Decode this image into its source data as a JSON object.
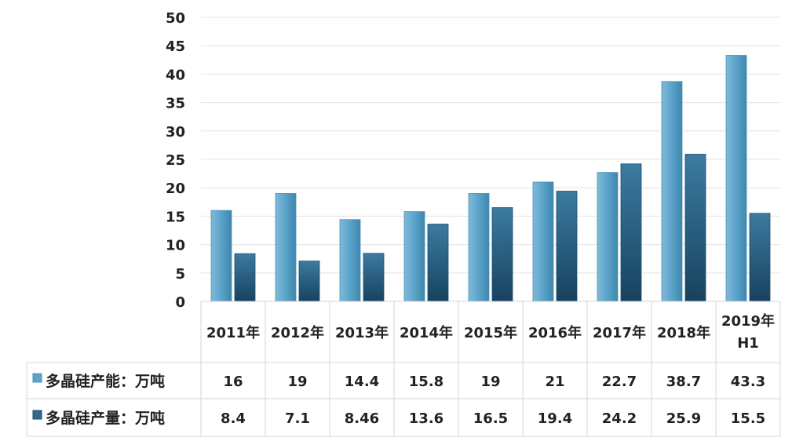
{
  "chart_data": {
    "type": "bar",
    "categories": [
      "2011年",
      "2012年",
      "2013年",
      "2014年",
      "2015年",
      "2016年",
      "2017年",
      "2018年",
      "2019年\nH1"
    ],
    "series": [
      {
        "name": "多晶硅产能：万吨",
        "values": [
          16,
          19,
          14.4,
          15.8,
          19,
          21,
          22.7,
          38.7,
          43.3
        ],
        "color": "#5BA3C9"
      },
      {
        "name": "多晶硅产量：万吨",
        "values": [
          8.4,
          7.1,
          8.46,
          13.6,
          16.5,
          19.4,
          24.2,
          25.9,
          15.5
        ],
        "color": "#2F6A8D"
      }
    ],
    "ylim": [
      0,
      50
    ],
    "yticks": [
      0,
      5,
      10,
      15,
      20,
      25,
      30,
      35,
      40,
      45,
      50
    ],
    "grid": true,
    "data_table": true,
    "title": "",
    "xlabel": "",
    "ylabel": ""
  }
}
